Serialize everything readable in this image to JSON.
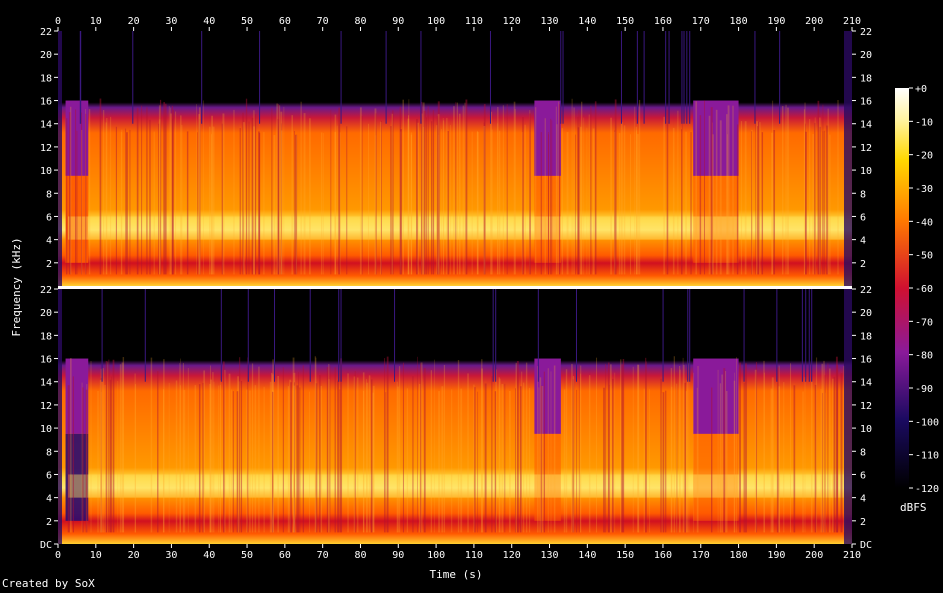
{
  "chart_data": {
    "type": "heatmap",
    "subtype": "spectrogram",
    "xlabel": "Time (s)",
    "ylabel": "Frequency (kHz)",
    "xlim": [
      0,
      210
    ],
    "ylim": [
      0,
      22
    ],
    "x_ticks": [
      0,
      10,
      20,
      30,
      40,
      50,
      60,
      70,
      80,
      90,
      100,
      110,
      120,
      130,
      140,
      150,
      160,
      170,
      180,
      190,
      200,
      210
    ],
    "y_ticks_top": [
      "22",
      "20",
      "18",
      "16",
      "14",
      "12",
      "10",
      "8",
      "6",
      "4",
      "2"
    ],
    "y_ticks_bottom": [
      "22",
      "20",
      "18",
      "16",
      "14",
      "12",
      "10",
      "8",
      "6",
      "4",
      "2",
      "DC"
    ],
    "channels": [
      {
        "name": "",
        "position": "upper"
      },
      {
        "name": "",
        "position": "lower"
      }
    ],
    "colorbar": {
      "label": "dBFS",
      "ticks": [
        "+0",
        "-10",
        "-20",
        "-30",
        "-40",
        "-50",
        "-60",
        "-70",
        "-80",
        "-90",
        "-100",
        "-110",
        "-120"
      ],
      "range": [
        -120,
        0
      ]
    },
    "observed_features": {
      "content_cutoff_khz": 14,
      "strong_band_khz": [
        4,
        6
      ],
      "low_band_khz": [
        1,
        2
      ],
      "quiet_segments_s": [
        [
          2,
          8
        ],
        [
          126,
          133
        ],
        [
          168,
          180
        ]
      ]
    },
    "colors": {
      "background": "#000000",
      "level_0": "#ffffff",
      "level_-20": "#ffd800",
      "level_-40": "#ff7a00",
      "level_-60": "#d01030",
      "level_-80": "#8a1a9a",
      "level_-100": "#1a0a60",
      "level_-120": "#000000"
    }
  },
  "footer": {
    "credit": "Created by SoX"
  }
}
